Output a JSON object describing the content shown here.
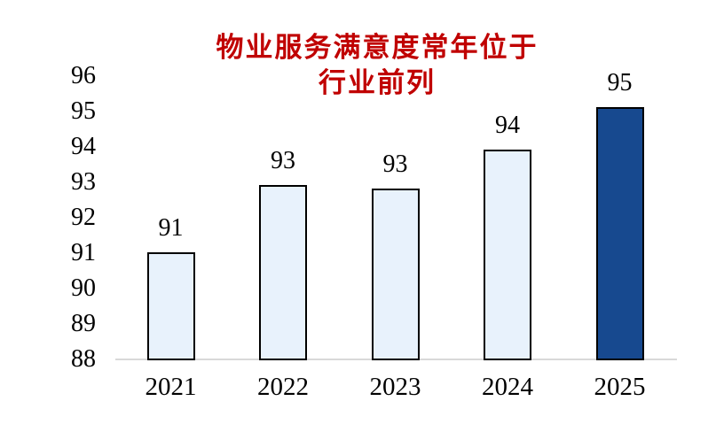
{
  "chart_data": {
    "type": "bar",
    "title": "物业服务满意度常年位于行业前列",
    "title_lines": [
      "物业服务满意度常年位于",
      "行业前列"
    ],
    "categories": [
      "2021",
      "2022",
      "2023",
      "2024",
      "2025"
    ],
    "values": [
      91,
      93,
      93,
      94,
      95
    ],
    "values_exact": [
      91.0,
      92.9,
      92.8,
      93.9,
      95.1
    ],
    "bar_labels": [
      "91",
      "93",
      "93",
      "94",
      "95"
    ],
    "ylim": [
      88,
      96
    ],
    "ytick_step": 1,
    "yticks": [
      "88",
      "89",
      "90",
      "91",
      "92",
      "93",
      "94",
      "95",
      "96"
    ],
    "grid": false,
    "legend": false,
    "highlight_index": 4,
    "colors": {
      "title": "#C00000",
      "bar_fill": "#E8F2FC",
      "bar_fill_highlight": "#17498F",
      "bar_border": "#000000",
      "axis_line": "#D9D9D9",
      "text": "#000000"
    }
  }
}
